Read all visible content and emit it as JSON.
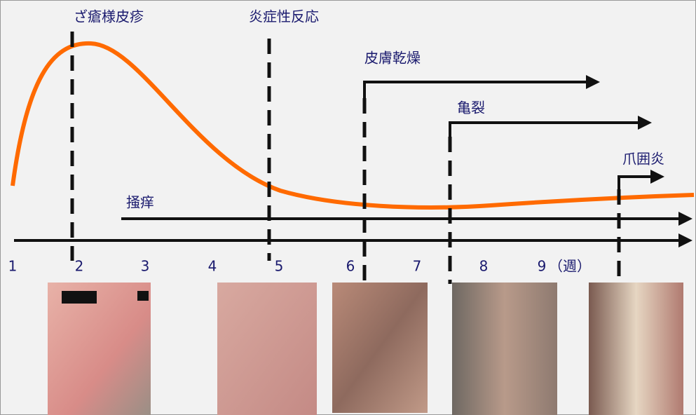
{
  "events": [
    {
      "label": "ざ瘡様皮疹"
    },
    {
      "label": "炎症性反応"
    },
    {
      "label": "皮膚乾燥"
    },
    {
      "label": "亀裂"
    },
    {
      "label": "爪囲炎"
    },
    {
      "label": "掻痒"
    }
  ],
  "axis": {
    "ticks": [
      "1",
      "2",
      "3",
      "4",
      "5",
      "6",
      "7",
      "8",
      "9"
    ],
    "unit": "（週）"
  }
}
